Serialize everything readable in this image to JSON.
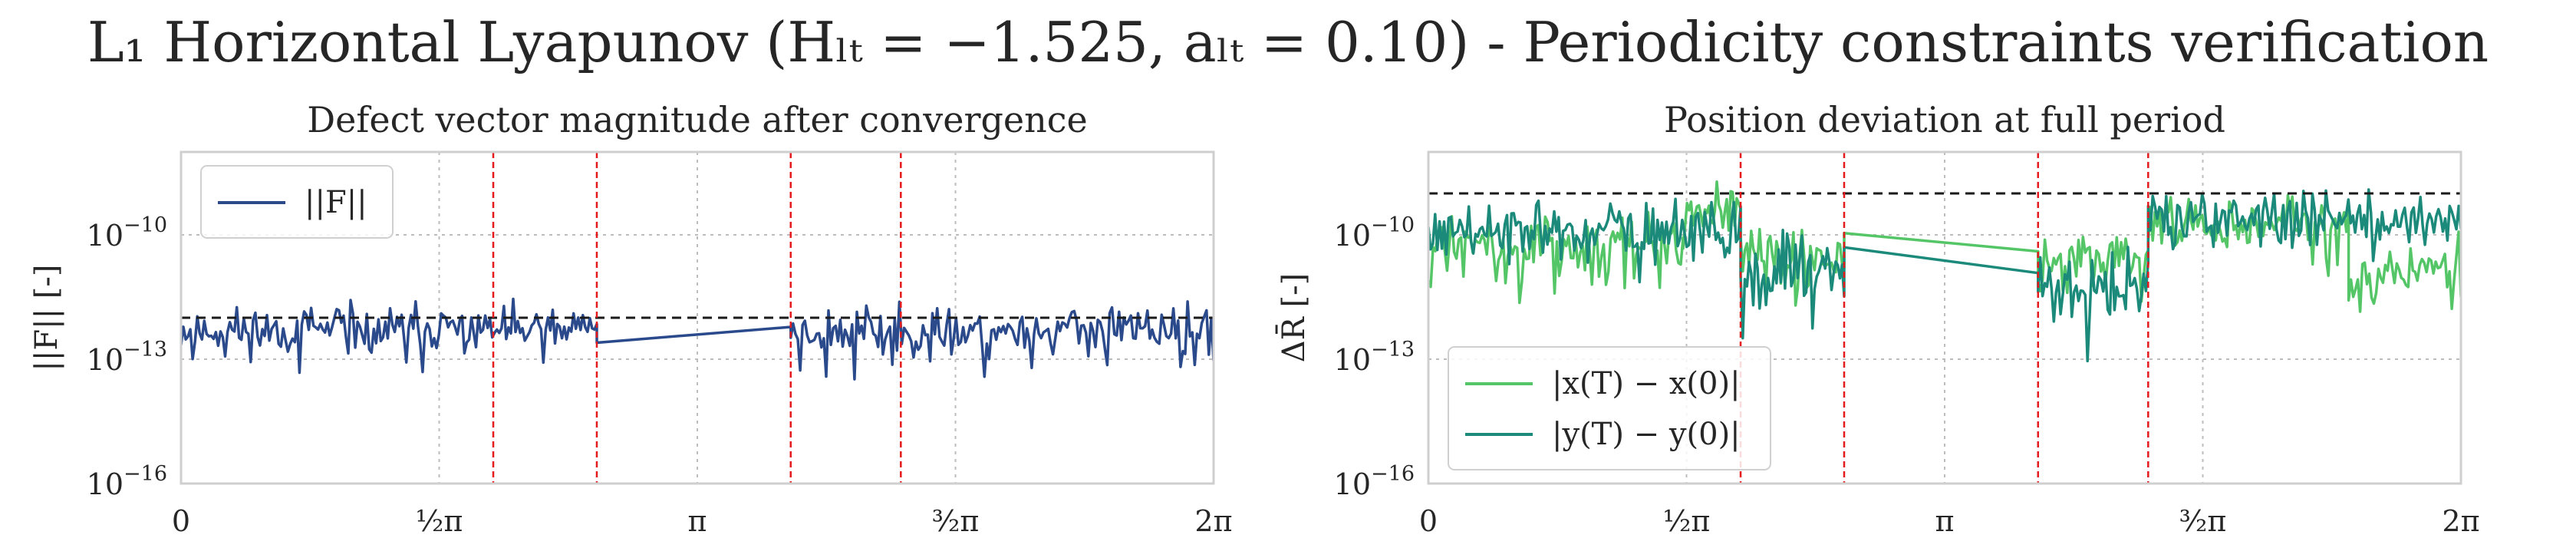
{
  "figure": {
    "suptitle": "L₁ Horizontal Lyapunov (Hₗₜ = −1.525, aₗₜ = 0.10) - Periodicity constraints verification"
  },
  "colors": {
    "defect": "#2b4a8c",
    "x_dev": "#55c667",
    "y_dev": "#1b8a7a",
    "discontinuity": "#e41a1c",
    "threshold": "#1a1a1a",
    "grid": "#bdbdbd",
    "frame": "#cfcfcf"
  },
  "chart_data": [
    {
      "type": "line",
      "title": "Defect vector magnitude after convergence",
      "ylabel": "||F|| [-]",
      "yscale": "log",
      "ylim": [
        1e-16,
        1e-08
      ],
      "yticks": [
        {
          "base": "10",
          "exp": "−10",
          "value": 1e-10
        },
        {
          "base": "10",
          "exp": "−13",
          "value": 1e-13
        },
        {
          "base": "10",
          "exp": "−16",
          "value": 1e-16
        }
      ],
      "xlim": [
        0,
        6.2832
      ],
      "xticks": [
        {
          "label": "0",
          "value": 0
        },
        {
          "label": "½π",
          "value": 1.5708
        },
        {
          "label": "π",
          "value": 3.1416
        },
        {
          "label": "³⁄₂π",
          "value": 4.7124
        },
        {
          "label": "2π",
          "value": 6.2832
        }
      ],
      "grid": true,
      "legend": {
        "placement": "top-left",
        "entries": [
          "||F||"
        ]
      },
      "threshold": 1e-12,
      "discontinuities": [
        1.9,
        2.53,
        3.71,
        4.38
      ],
      "series": [
        {
          "name": "||F||",
          "segments": [
            {
              "x_start": 0.0,
              "x_end": 2.53,
              "count": 180,
              "y_mean": 5e-13,
              "y_spread": 0.35,
              "seed": 11
            },
            {
              "x_start": 2.53,
              "x_end": 3.71,
              "count": 2,
              "y_start": 2.5e-13,
              "y_end": 6e-13,
              "linear": true
            },
            {
              "x_start": 3.71,
              "x_end": 6.2832,
              "count": 180,
              "y_mean": 5e-13,
              "y_spread": 0.35,
              "seed": 23
            }
          ]
        }
      ]
    },
    {
      "type": "line",
      "title": "Position deviation at full period",
      "ylabel": "ΔR̄ [-]",
      "yscale": "log",
      "ylim": [
        1e-16,
        1e-08
      ],
      "yticks": [
        {
          "base": "10",
          "exp": "−10",
          "value": 1e-10
        },
        {
          "base": "10",
          "exp": "−13",
          "value": 1e-13
        },
        {
          "base": "10",
          "exp": "−16",
          "value": 1e-16
        }
      ],
      "xlim": [
        0,
        6.2832
      ],
      "xticks": [
        {
          "label": "0",
          "value": 0
        },
        {
          "label": "½π",
          "value": 1.5708
        },
        {
          "label": "π",
          "value": 3.1416
        },
        {
          "label": "³⁄₂π",
          "value": 4.7124
        },
        {
          "label": "2π",
          "value": 6.2832
        }
      ],
      "grid": true,
      "legend": {
        "placement": "bottom-left",
        "entries": [
          "|x(T) − x(0)|",
          "|y(T) − y(0)|"
        ]
      },
      "threshold": 1e-09,
      "discontinuities": [
        1.9,
        2.53,
        3.71,
        4.38
      ],
      "series": [
        {
          "name": "|x(T) − x(0)|",
          "segments": [
            {
              "x_start": 0.0,
              "x_end": 1.55,
              "count": 110,
              "y_mean": 5e-11,
              "y_spread": 0.45,
              "seed": 31
            },
            {
              "x_start": 1.55,
              "x_end": 1.9,
              "count": 30,
              "y_mean": 5e-10,
              "y_spread": 0.35,
              "seed": 37
            },
            {
              "x_start": 1.9,
              "x_end": 2.53,
              "count": 50,
              "y_mean": 3e-11,
              "y_spread": 0.45,
              "seed": 41
            },
            {
              "x_start": 2.53,
              "x_end": 3.71,
              "count": 2,
              "y_start": 1.1e-10,
              "y_end": 4e-11,
              "linear": true
            },
            {
              "x_start": 3.71,
              "x_end": 4.38,
              "count": 50,
              "y_mean": 2.5e-11,
              "y_spread": 0.4,
              "seed": 43
            },
            {
              "x_start": 4.38,
              "x_end": 5.6,
              "count": 90,
              "y_mean": 2e-10,
              "y_spread": 0.4,
              "seed": 47
            },
            {
              "x_start": 5.6,
              "x_end": 6.2832,
              "count": 50,
              "y_mean": 1.5e-11,
              "y_spread": 0.45,
              "seed": 53
            }
          ]
        },
        {
          "name": "|y(T) − y(0)|",
          "segments": [
            {
              "x_start": 0.0,
              "x_end": 1.9,
              "count": 140,
              "y_mean": 1.2e-10,
              "y_spread": 0.45,
              "seed": 61
            },
            {
              "x_start": 1.9,
              "x_end": 2.53,
              "count": 50,
              "y_mean": 1.5e-11,
              "y_spread": 0.55,
              "seed": 67
            },
            {
              "x_start": 2.53,
              "x_end": 3.71,
              "count": 2,
              "y_start": 5e-11,
              "y_end": 1.2e-11,
              "linear": true
            },
            {
              "x_start": 3.71,
              "x_end": 4.38,
              "count": 50,
              "y_mean": 5e-12,
              "y_spread": 0.55,
              "seed": 71
            },
            {
              "x_start": 4.38,
              "x_end": 6.2832,
              "count": 140,
              "y_mean": 2.5e-10,
              "y_spread": 0.4,
              "seed": 73
            }
          ]
        }
      ]
    }
  ]
}
